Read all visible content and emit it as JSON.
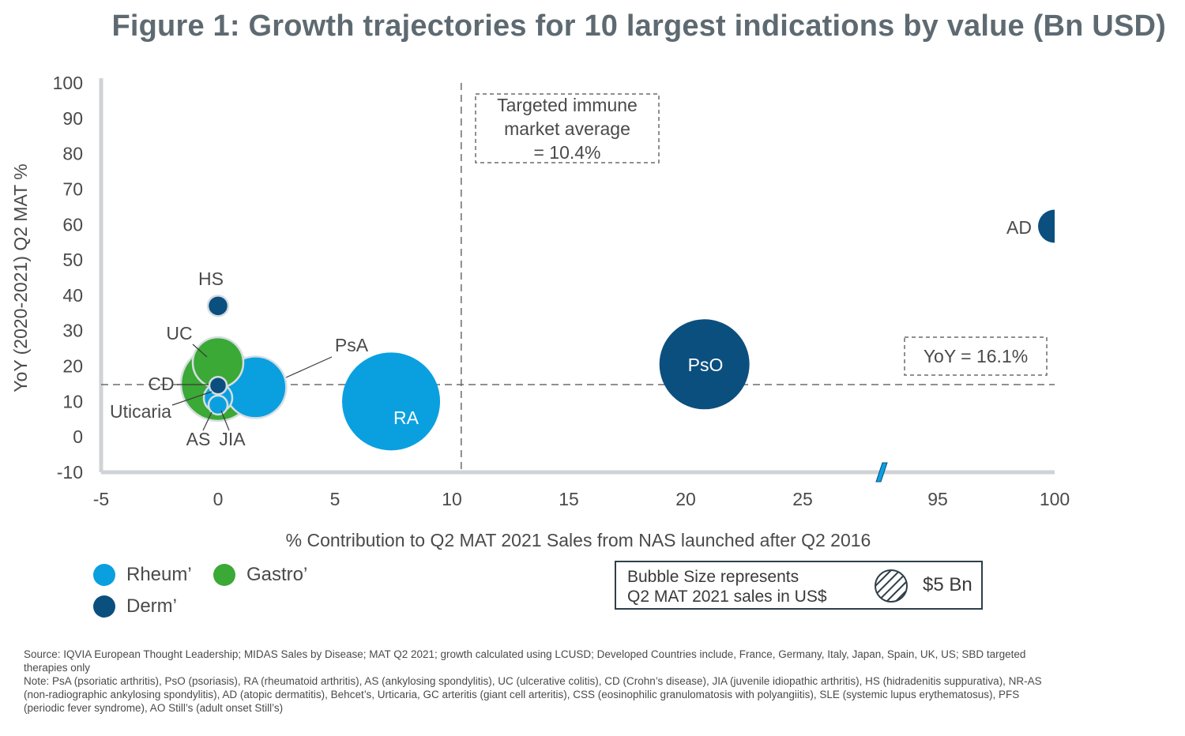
{
  "title": "Figure 1: Growth trajectories for 10 largest indications by value (Bn USD)",
  "chart_data": {
    "type": "scatter",
    "subtype": "bubble",
    "xlabel": "% Contribution to Q2 MAT 2021 Sales from NAS launched after Q2 2016",
    "ylabel": "YoY (2020-2021) Q2 MAT %",
    "x_ticks": [
      "-5",
      "0",
      "5",
      "10",
      "15",
      "20",
      "25",
      "95",
      "100"
    ],
    "y_ticks": [
      "100",
      "90",
      "80",
      "70",
      "60",
      "50",
      "40",
      "30",
      "20",
      "10",
      "0",
      "-10"
    ],
    "ylim": [
      -10,
      100
    ],
    "x_axis_break": "between 25 and 95",
    "reference_lines": [
      {
        "axis": "x",
        "value": 10.4,
        "label": "Targeted immune\nmarket average\n= 10.4%"
      },
      {
        "axis": "y",
        "value": 16.1,
        "label": "YoY = 16.1%"
      }
    ],
    "series": [
      {
        "name": "Rheum’",
        "color": "#0aa0e0",
        "points": [
          {
            "label": "RA",
            "x": 7.4,
            "y": 10,
            "size_bn": 8.5
          },
          {
            "label": "PsA",
            "x": 1.6,
            "y": 14,
            "size_bn": 2.4
          },
          {
            "label": "AS",
            "x": 0,
            "y": 11,
            "size_bn": 0.5
          },
          {
            "label": "JIA",
            "x": 0,
            "y": 9,
            "size_bn": 0.2
          }
        ]
      },
      {
        "name": "Gastro’",
        "color": "#3aa935",
        "points": [
          {
            "label": "CD",
            "x": 0,
            "y": 15,
            "size_bn": 3.0
          },
          {
            "label": "UC",
            "x": 0,
            "y": 21,
            "size_bn": 1.6
          }
        ]
      },
      {
        "name": "Derm’",
        "color": "#0b4f7f",
        "points": [
          {
            "label": "PsO",
            "x": 20.8,
            "y": 20.5,
            "size_bn": 6.3
          },
          {
            "label": "HS",
            "x": 0,
            "y": 37,
            "size_bn": 0.2
          },
          {
            "label": "Uticaria",
            "x": 0,
            "y": 14.5,
            "size_bn": 0.1
          },
          {
            "label": "AD",
            "x": 100,
            "y": 59.5,
            "size_bn": 0.6
          }
        ]
      }
    ],
    "size_legend": {
      "line1": "Bubble Size represents",
      "line2": "Q2 MAT 2021 sales in US$",
      "value": "$5 Bn"
    },
    "legend_position": "bottom-left"
  },
  "footnotes": [
    "Source: IQVIA European Thought Leadership; MIDAS Sales by Disease; MAT Q2 2021; growth calculated using LCUSD; Developed Countries include, France, Germany, Italy, Japan, Spain, UK, US; SBD targeted therapies only",
    "Note: PsA (psoriatic arthritis), PsO (psoriasis), RA (rheumatoid arthritis), AS (ankylosing spondylitis), UC (ulcerative colitis), CD (Crohn’s disease), JIA (juvenile idiopathic arthritis), HS (hidradenitis suppurativa), NR-AS (non-radiographic ankylosing spondylitis), AD (atopic dermatitis), Behcet’s, Urticaria, GC arteritis (giant cell arteritis), CSS (eosinophilic granulomatosis with polyangiitis), SLE (systemic lupus erythematosus), PFS (periodic fever syndrome), AO Still’s (adult onset Still’s)"
  ]
}
